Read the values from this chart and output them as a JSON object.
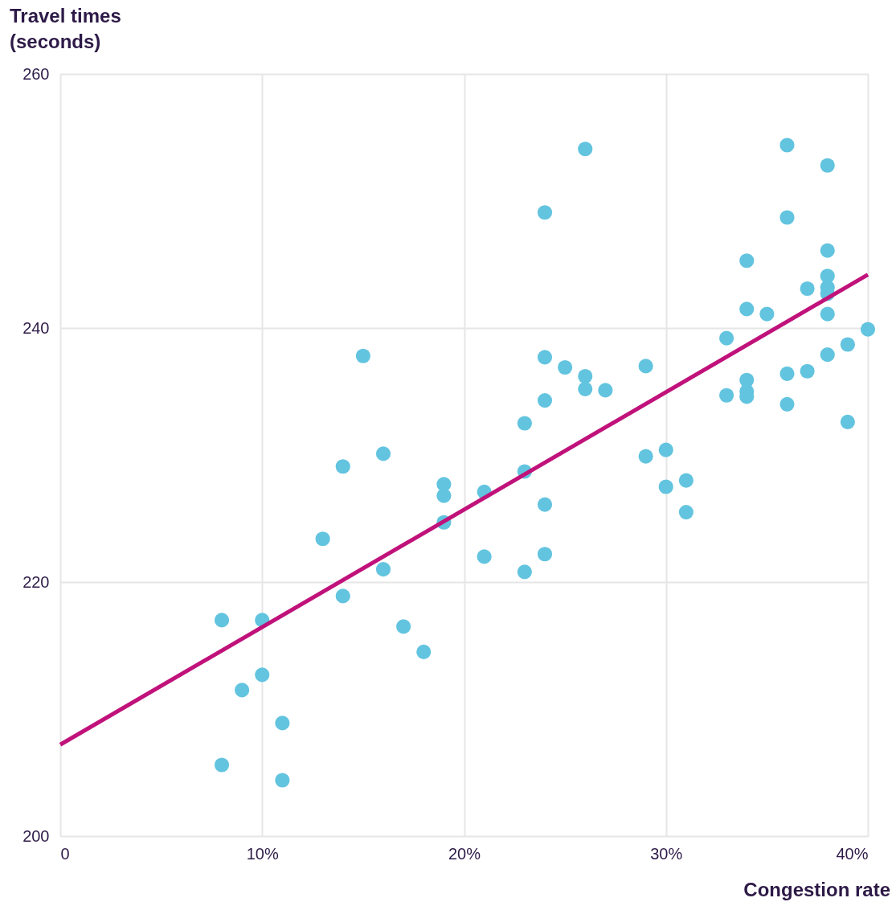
{
  "chart_data": {
    "type": "scatter",
    "xlabel": "Congestion rate",
    "ylabel": "Travel times (seconds)",
    "xlim": [
      0,
      40
    ],
    "ylim": [
      200,
      260
    ],
    "xticks": [
      0,
      {
        "value": 10,
        "label": "10%"
      },
      {
        "value": 20,
        "label": "20%"
      },
      {
        "value": 30,
        "label": "30%"
      },
      {
        "value": 40,
        "label": "40%"
      }
    ],
    "yticks": [
      200,
      220,
      240,
      260
    ],
    "grid": true,
    "series": [
      {
        "color": "#62c4df",
        "marker": "circle",
        "x": [
          8,
          8,
          9,
          10,
          10,
          11,
          11,
          13,
          14,
          14,
          15,
          16,
          16,
          17,
          18,
          19,
          19,
          19,
          21,
          21,
          23,
          23,
          23,
          24,
          24,
          24,
          24,
          24,
          25,
          26,
          26,
          26,
          27,
          29,
          29,
          30,
          30,
          31,
          31,
          33,
          33,
          34,
          34,
          34,
          34,
          34,
          35,
          36,
          36,
          36,
          36,
          37,
          37,
          38,
          38,
          38,
          38,
          38,
          38,
          38,
          39,
          39,
          40
        ],
        "values": [
          217.0,
          205.6,
          211.5,
          217.0,
          212.7,
          208.9,
          204.4,
          223.4,
          229.1,
          218.9,
          237.8,
          230.1,
          221.0,
          216.5,
          214.5,
          227.7,
          226.8,
          224.7,
          227.1,
          222.0,
          232.5,
          228.7,
          220.8,
          249.1,
          237.7,
          234.3,
          226.1,
          222.2,
          236.9,
          254.1,
          236.2,
          235.2,
          235.1,
          237.0,
          229.9,
          230.4,
          227.5,
          228.0,
          225.5,
          239.2,
          234.7,
          245.3,
          241.5,
          235.9,
          235.0,
          234.6,
          241.1,
          254.4,
          248.7,
          236.4,
          234.0,
          243.1,
          236.6,
          252.8,
          246.1,
          244.1,
          243.2,
          242.7,
          241.1,
          237.9,
          238.7,
          232.6,
          239.9
        ]
      },
      {
        "type": "line",
        "marker": "none",
        "color": "#c0127a",
        "line_style": "solid",
        "x": [
          0,
          40
        ],
        "values": [
          207.2,
          244.2
        ]
      }
    ]
  }
}
